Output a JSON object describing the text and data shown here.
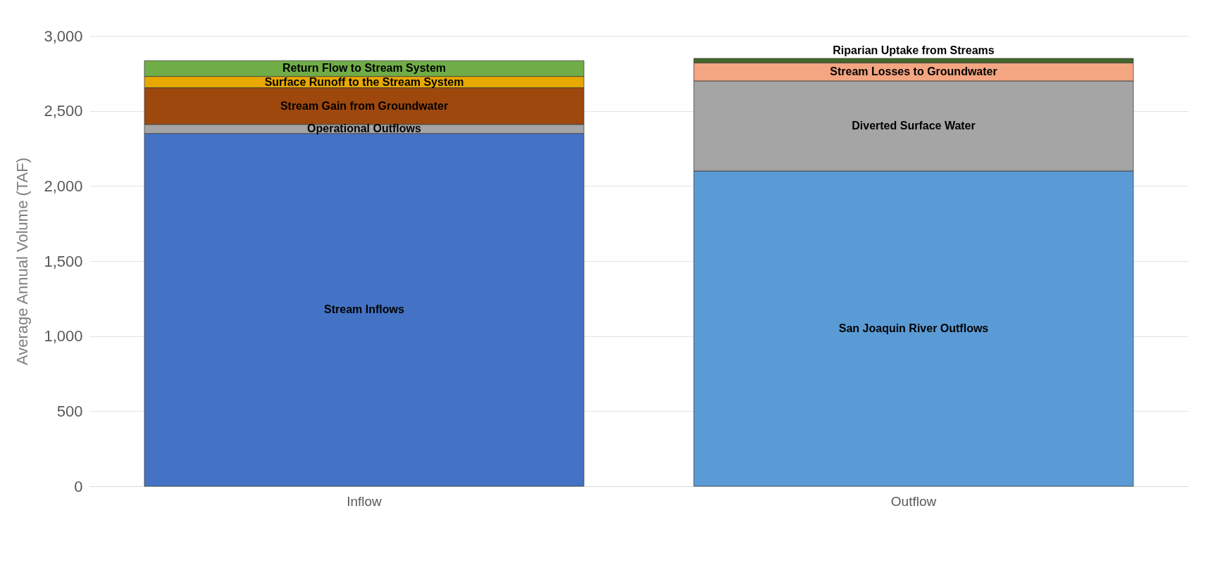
{
  "chart_data": {
    "type": "bar",
    "stacked": true,
    "ylabel": "Average Annual Volume (TAF)",
    "categories": [
      "Inflow",
      "Outflow"
    ],
    "ylim": [
      0,
      3000
    ],
    "yticks": [
      {
        "value": 0,
        "label": "0"
      },
      {
        "value": 500,
        "label": "500"
      },
      {
        "value": 1000,
        "label": "1,000"
      },
      {
        "value": 1500,
        "label": "1,500"
      },
      {
        "value": 2000,
        "label": "2,000"
      },
      {
        "value": 2500,
        "label": "2,500"
      },
      {
        "value": 3000,
        "label": "3,000"
      }
    ],
    "grid": "y",
    "legend": false,
    "series": [
      {
        "name": "Stream Inflows",
        "color": "#4472c4",
        "values": [
          2350,
          null
        ]
      },
      {
        "name": "Operational Outflows",
        "color": "#a5a5a5",
        "values": [
          60,
          null
        ]
      },
      {
        "name": "Stream Gain from Groundwater",
        "color": "#9e480e",
        "values": [
          245,
          null
        ]
      },
      {
        "name": "Surface Runoff to the Stream System",
        "color": "#e8a800",
        "values": [
          75,
          null
        ]
      },
      {
        "name": "Return Flow to Stream System",
        "color": "#70ad47",
        "values": [
          105,
          null
        ]
      },
      {
        "name": "San Joaquin River Outflows",
        "color": "#5b9bd5",
        "values": [
          null,
          2100
        ]
      },
      {
        "name": "Diverted Surface Water",
        "color": "#a5a5a5",
        "values": [
          null,
          600
        ]
      },
      {
        "name": "Stream Losses to Groundwater",
        "color": "#f4a582",
        "values": [
          null,
          120
        ]
      },
      {
        "name": "Riparian Uptake from Streams",
        "color": "#43682b",
        "values": [
          null,
          30
        ]
      }
    ]
  }
}
